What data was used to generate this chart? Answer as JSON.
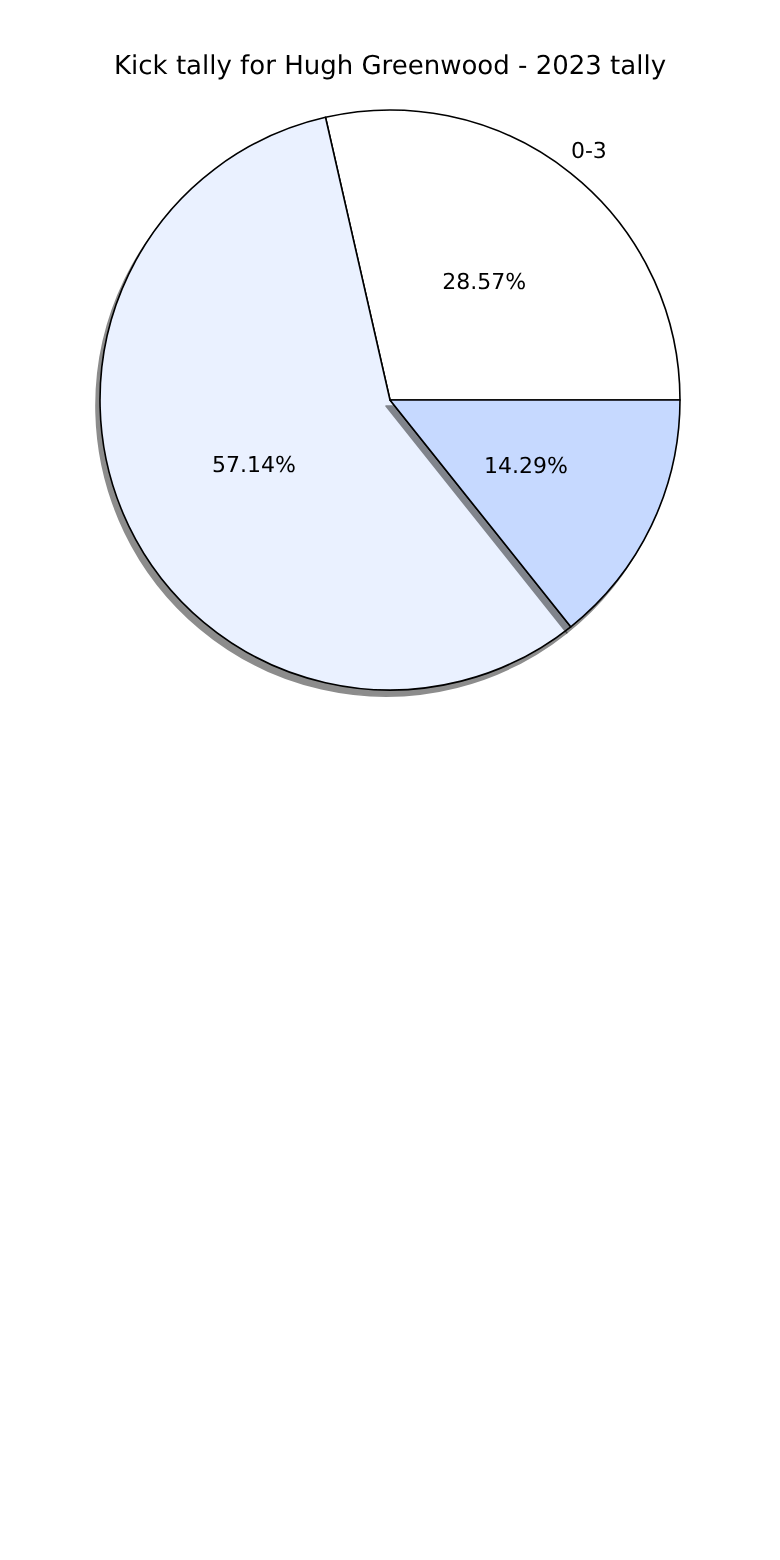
{
  "chart_data": {
    "type": "pie",
    "title": "Kick tally for Hugh Greenwood - 2023 tally",
    "categories": [
      "0-3",
      null,
      null
    ],
    "values": [
      28.57,
      57.14,
      14.29
    ],
    "value_labels": [
      "28.57%",
      "57.14%",
      "14.29%"
    ],
    "colors": [
      "#ffffff",
      "#eaf1ff",
      "#c6d9ff"
    ],
    "legend": false
  }
}
